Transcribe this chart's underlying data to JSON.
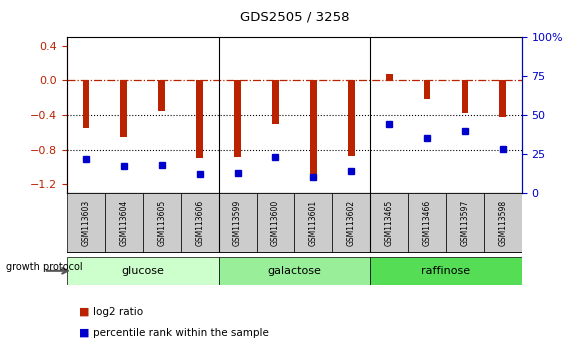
{
  "title": "GDS2505 / 3258",
  "samples": [
    "GSM113603",
    "GSM113604",
    "GSM113605",
    "GSM113606",
    "GSM113599",
    "GSM113600",
    "GSM113601",
    "GSM113602",
    "GSM113465",
    "GSM113466",
    "GSM113597",
    "GSM113598"
  ],
  "log2_ratio": [
    -0.55,
    -0.65,
    -0.35,
    -0.9,
    -0.88,
    -0.5,
    -1.08,
    -0.87,
    0.08,
    -0.22,
    -0.38,
    -0.42
  ],
  "percentile_rank": [
    22,
    17,
    18,
    12,
    13,
    23,
    10,
    14,
    44,
    35,
    40,
    28
  ],
  "groups": [
    {
      "label": "glucose",
      "start": 0,
      "end": 4,
      "color": "#ccffcc"
    },
    {
      "label": "galactose",
      "start": 4,
      "end": 8,
      "color": "#99ee99"
    },
    {
      "label": "raffinose",
      "start": 8,
      "end": 12,
      "color": "#55dd55"
    }
  ],
  "ylim_left": [
    -1.3,
    0.5
  ],
  "ylim_right": [
    0,
    100
  ],
  "yticks_left": [
    -1.2,
    -0.8,
    -0.4,
    0.0,
    0.4
  ],
  "yticks_right": [
    0,
    25,
    50,
    75,
    100
  ],
  "bar_color": "#bb2200",
  "dot_color": "#0000cc",
  "hline_y": 0.0,
  "dotted_lines": [
    -0.4,
    -0.8
  ],
  "bar_width": 0.18,
  "label_box_color": "#cccccc",
  "group_sep_color": "#333333"
}
